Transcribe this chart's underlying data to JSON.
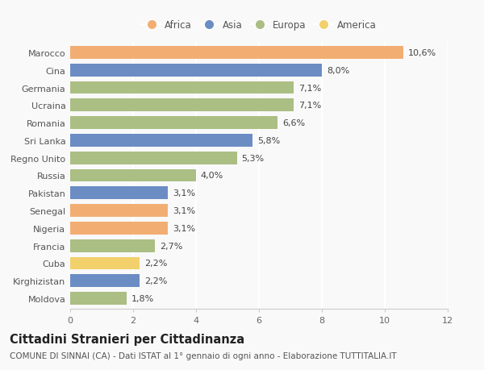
{
  "categories": [
    "Marocco",
    "Cina",
    "Germania",
    "Ucraina",
    "Romania",
    "Sri Lanka",
    "Regno Unito",
    "Russia",
    "Pakistan",
    "Senegal",
    "Nigeria",
    "Francia",
    "Cuba",
    "Kirghizistan",
    "Moldova"
  ],
  "values": [
    10.6,
    8.0,
    7.1,
    7.1,
    6.6,
    5.8,
    5.3,
    4.0,
    3.1,
    3.1,
    3.1,
    2.7,
    2.2,
    2.2,
    1.8
  ],
  "labels": [
    "10,6%",
    "8,0%",
    "7,1%",
    "7,1%",
    "6,6%",
    "5,8%",
    "5,3%",
    "4,0%",
    "3,1%",
    "3,1%",
    "3,1%",
    "2,7%",
    "2,2%",
    "2,2%",
    "1,8%"
  ],
  "continents": [
    "Africa",
    "Asia",
    "Europa",
    "Europa",
    "Europa",
    "Asia",
    "Europa",
    "Europa",
    "Asia",
    "Africa",
    "Africa",
    "Europa",
    "America",
    "Asia",
    "Europa"
  ],
  "colors": {
    "Africa": "#F2AE72",
    "Asia": "#6B8DC4",
    "Europa": "#ABBE84",
    "America": "#F2D06B"
  },
  "legend_order": [
    "Africa",
    "Asia",
    "Europa",
    "America"
  ],
  "legend_colors": [
    "#F2AE72",
    "#6B8DC4",
    "#ABBE84",
    "#F2D06B"
  ],
  "xlim": [
    0,
    12
  ],
  "xticks": [
    0,
    2,
    4,
    6,
    8,
    10,
    12
  ],
  "title": "Cittadini Stranieri per Cittadinanza",
  "subtitle": "COMUNE DI SINNAI (CA) - Dati ISTAT al 1° gennaio di ogni anno - Elaborazione TUTTITALIA.IT",
  "background_color": "#f9f9f9",
  "grid_color": "#ffffff",
  "bar_height": 0.72,
  "label_fontsize": 8,
  "tick_fontsize": 8,
  "ytick_fontsize": 8,
  "title_fontsize": 10.5,
  "subtitle_fontsize": 7.5,
  "legend_fontsize": 8.5
}
